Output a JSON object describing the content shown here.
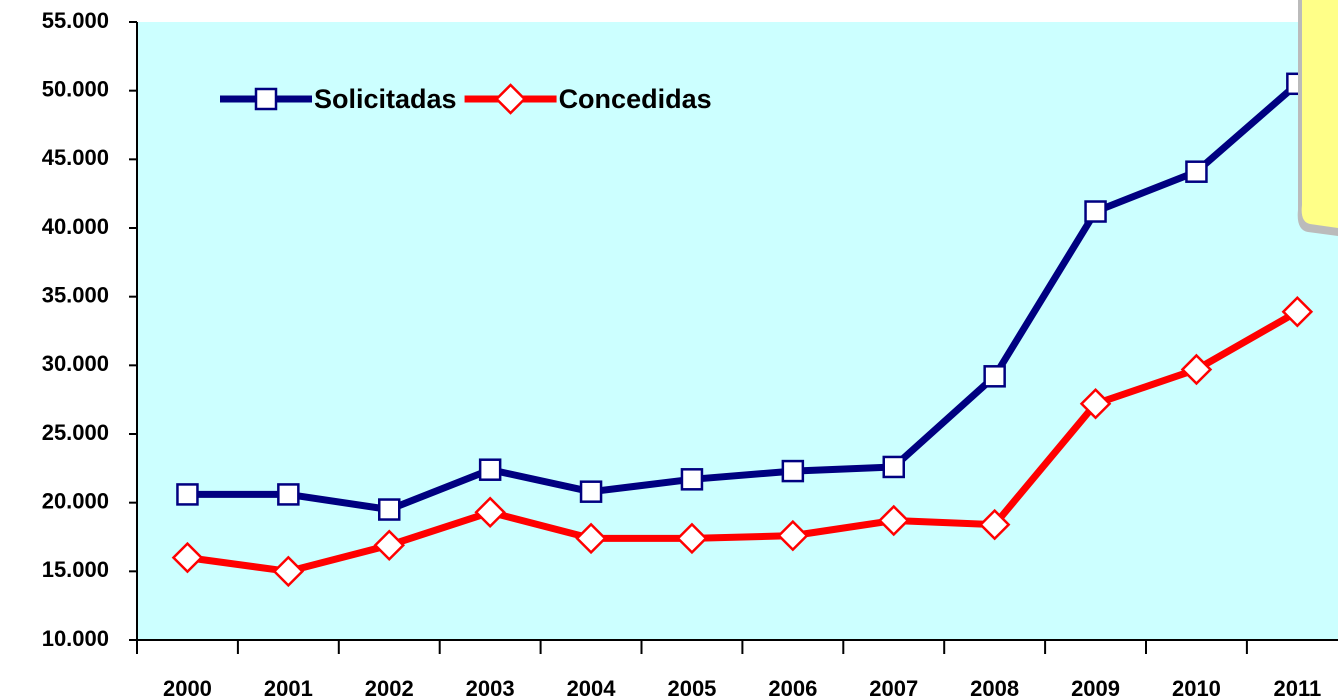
{
  "chart_data": {
    "type": "line",
    "categories": [
      "2000",
      "2001",
      "2002",
      "2003",
      "2004",
      "2005",
      "2006",
      "2007",
      "2008",
      "2009",
      "2010",
      "2011"
    ],
    "series": [
      {
        "name": "Solicitadas",
        "color": "#000080",
        "marker": "square",
        "values": [
          20600,
          20600,
          19500,
          22400,
          20800,
          21700,
          22300,
          22600,
          29200,
          41200,
          44100,
          50500
        ]
      },
      {
        "name": "Concedidas",
        "color": "#ff0000",
        "marker": "diamond",
        "values": [
          16000,
          15000,
          16900,
          19300,
          17400,
          17400,
          17600,
          18700,
          18400,
          27200,
          29700,
          33900
        ]
      }
    ],
    "ylim": [
      10000,
      55000
    ],
    "yticks": [
      {
        "value": 10000,
        "label": "10.000"
      },
      {
        "value": 15000,
        "label": "15.000"
      },
      {
        "value": 20000,
        "label": "20.000"
      },
      {
        "value": 25000,
        "label": "25.000"
      },
      {
        "value": 30000,
        "label": "30.000"
      },
      {
        "value": 35000,
        "label": "35.000"
      },
      {
        "value": 40000,
        "label": "40.000"
      },
      {
        "value": 45000,
        "label": "45.000"
      },
      {
        "value": 50000,
        "label": "50.000"
      },
      {
        "value": 55000,
        "label": "55.000"
      }
    ],
    "grid": false,
    "legend": "upper left",
    "background": "#ccffff"
  }
}
